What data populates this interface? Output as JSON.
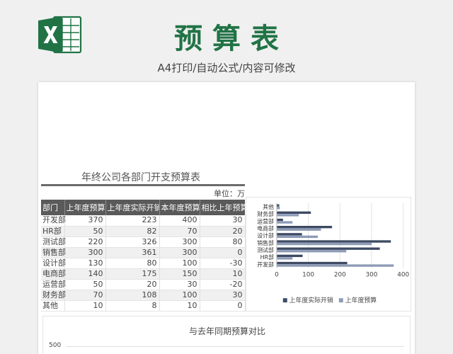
{
  "header": {
    "title": "预算表",
    "subtitle": "A4打印/自动公式/内容可修改"
  },
  "colors": {
    "brand_green": "#217346",
    "table_header_bg": "#5a5a5a",
    "series_actual": "#3d4a63",
    "series_budget": "#8d9bb6"
  },
  "icons": {
    "logo": "excel-logo-icon"
  },
  "sheet": {
    "table_title": "年终公司各部门开支预算表",
    "unit": "单位：万",
    "columns": [
      "部门",
      "上年度预算",
      "上年度实际开销",
      "本年度预算",
      "相比上年预算"
    ],
    "rows": [
      [
        "开发部",
        "370",
        "223",
        "400",
        "30"
      ],
      [
        "HR部",
        "50",
        "82",
        "70",
        "20"
      ],
      [
        "测试部",
        "220",
        "326",
        "300",
        "80"
      ],
      [
        "销售部",
        "300",
        "361",
        "300",
        "0"
      ],
      [
        "设计部",
        "130",
        "80",
        "100",
        "-30"
      ],
      [
        "电商部",
        "140",
        "175",
        "150",
        "10"
      ],
      [
        "运营部",
        "50",
        "20",
        "30",
        "-20"
      ],
      [
        "财务部",
        "70",
        "108",
        "100",
        "30"
      ],
      [
        "其他",
        "10",
        "8",
        "10",
        "0"
      ]
    ]
  },
  "chart_data": [
    {
      "type": "bar",
      "orientation": "horizontal",
      "categories": [
        "开发部",
        "HR部",
        "测试部",
        "销售部",
        "设计部",
        "电商部",
        "运营部",
        "财务部",
        "其他"
      ],
      "series": [
        {
          "name": "上年度实际开销",
          "values": [
            223,
            82,
            326,
            361,
            80,
            175,
            20,
            108,
            8
          ]
        },
        {
          "name": "上年度预算",
          "values": [
            370,
            50,
            220,
            300,
            130,
            140,
            50,
            70,
            10
          ]
        }
      ],
      "xlim": [
        0,
        400
      ],
      "xticks": [
        "0",
        "100",
        "200",
        "300",
        "400"
      ],
      "legend": "bottom",
      "grid": true
    },
    {
      "type": "bar",
      "title": "与去年同期预算对比",
      "yticks": [
        "500"
      ]
    }
  ]
}
